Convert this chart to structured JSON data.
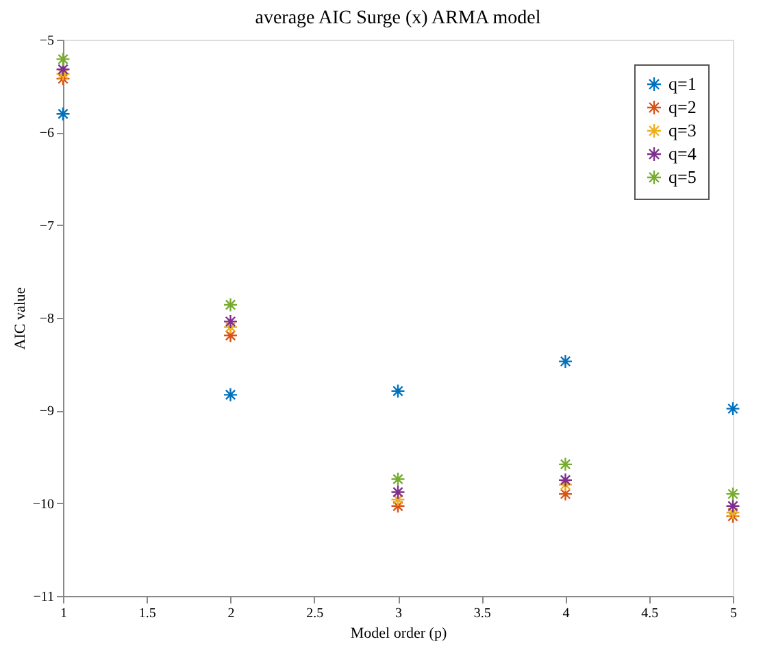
{
  "chart_data": {
    "type": "scatter",
    "title": "average AIC Surge (x) ARMA model",
    "xlabel": "Model order (p)",
    "ylabel": "AIC value",
    "x": [
      1,
      2,
      3,
      4,
      5
    ],
    "series": [
      {
        "name": "q=1",
        "color": "#0072bd",
        "values": [
          -5.8,
          -8.83,
          -8.79,
          -8.47,
          -8.98
        ]
      },
      {
        "name": "q=2",
        "color": "#d95319",
        "values": [
          -5.42,
          -8.19,
          -10.03,
          -9.9,
          -10.14
        ]
      },
      {
        "name": "q=3",
        "color": "#edb120",
        "values": [
          -5.37,
          -8.1,
          -9.96,
          -9.8,
          -10.1
        ]
      },
      {
        "name": "q=4",
        "color": "#7e2f8e",
        "values": [
          -5.32,
          -8.04,
          -9.88,
          -9.75,
          -10.03
        ]
      },
      {
        "name": "q=5",
        "color": "#77ac30",
        "values": [
          -5.21,
          -7.86,
          -9.74,
          -9.58,
          -9.9
        ]
      }
    ],
    "xlim": [
      1,
      5
    ],
    "xticks": [
      1,
      1.5,
      2,
      2.5,
      3,
      3.5,
      4,
      4.5,
      5
    ],
    "ylim": [
      -11,
      -5
    ],
    "yticks": [
      -11,
      -10,
      -9,
      -8,
      -7,
      -6,
      -5
    ],
    "marker": "cross",
    "grid": false,
    "legend": "top right"
  }
}
